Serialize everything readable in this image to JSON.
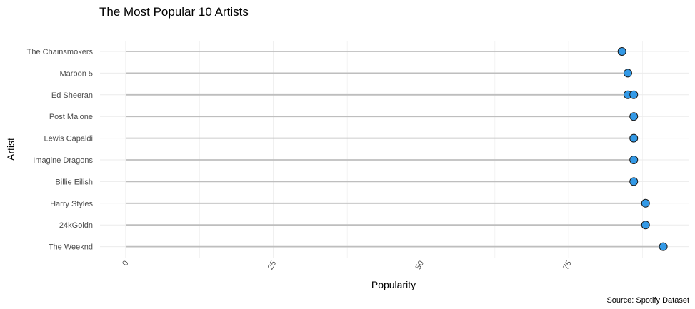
{
  "chart_data": {
    "type": "lollipop",
    "title": "The Most Popular 10 Artists",
    "xlabel": "Popularity",
    "ylabel": "Artist",
    "caption": "Source: Spotify Dataset",
    "xlim": [
      0,
      95
    ],
    "xticks": [
      0,
      25,
      50,
      75
    ],
    "xtick_labels": [
      "0",
      "25",
      "50",
      "75"
    ],
    "grid": true,
    "colors": {
      "point_fill": "#3399e6",
      "point_stroke": "#1a1a1a",
      "stem": "#bebebe",
      "grid": "#ebebeb"
    },
    "categories": [
      "The Chainsmokers",
      "Maroon 5",
      "Ed Sheeran",
      "Post Malone",
      "Lewis Capaldi",
      "Imagine Dragons",
      "Billie Eilish",
      "Harry Styles",
      "24kGoldn",
      "The Weeknd"
    ],
    "points": [
      {
        "artist": "The Chainsmokers",
        "popularity": 84
      },
      {
        "artist": "Maroon 5",
        "popularity": 85
      },
      {
        "artist": "Ed Sheeran",
        "popularity": 85
      },
      {
        "artist": "Ed Sheeran",
        "popularity": 86
      },
      {
        "artist": "Post Malone",
        "popularity": 86
      },
      {
        "artist": "Lewis Capaldi",
        "popularity": 86
      },
      {
        "artist": "Imagine Dragons",
        "popularity": 86
      },
      {
        "artist": "Billie Eilish",
        "popularity": 86
      },
      {
        "artist": "Harry Styles",
        "popularity": 88
      },
      {
        "artist": "24kGoldn",
        "popularity": 88
      },
      {
        "artist": "The Weeknd",
        "popularity": 91
      }
    ]
  }
}
